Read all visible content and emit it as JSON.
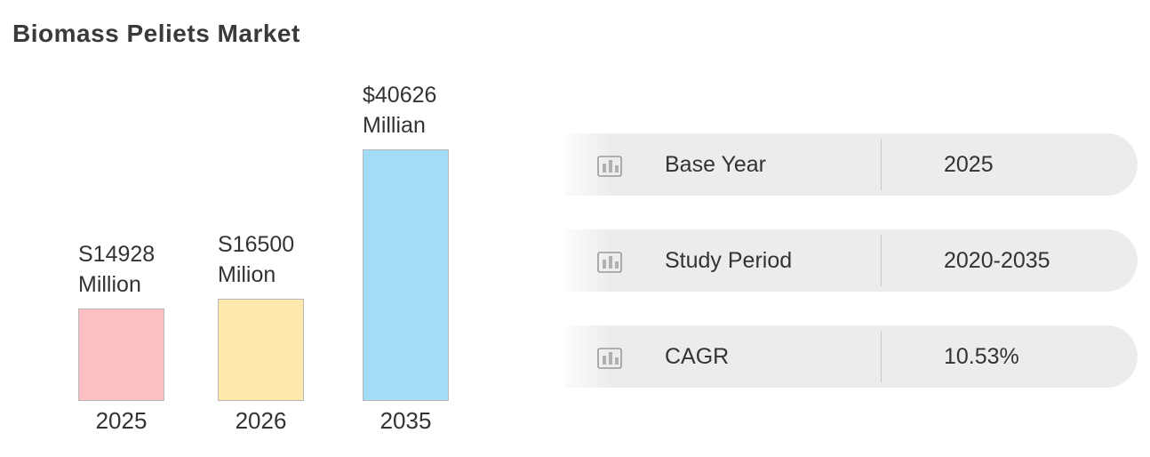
{
  "chart_data": {
    "type": "bar",
    "title": "Biomass Peliets Market",
    "categories": [
      "2025",
      "2026",
      "2035"
    ],
    "values": [
      14928,
      16500,
      40626
    ],
    "value_labels": [
      "S14928 Million",
      "S16500 Milion",
      "$40626 Millian"
    ],
    "colors": [
      "#fcbfc3",
      "#fde9ab",
      "#a2dcf5"
    ]
  },
  "info": {
    "rows": [
      {
        "label": "Base Year",
        "value": "2025"
      },
      {
        "label": "Study Period",
        "value": "2020-2035"
      },
      {
        "label": "CAGR",
        "value": "10.53%"
      }
    ]
  }
}
